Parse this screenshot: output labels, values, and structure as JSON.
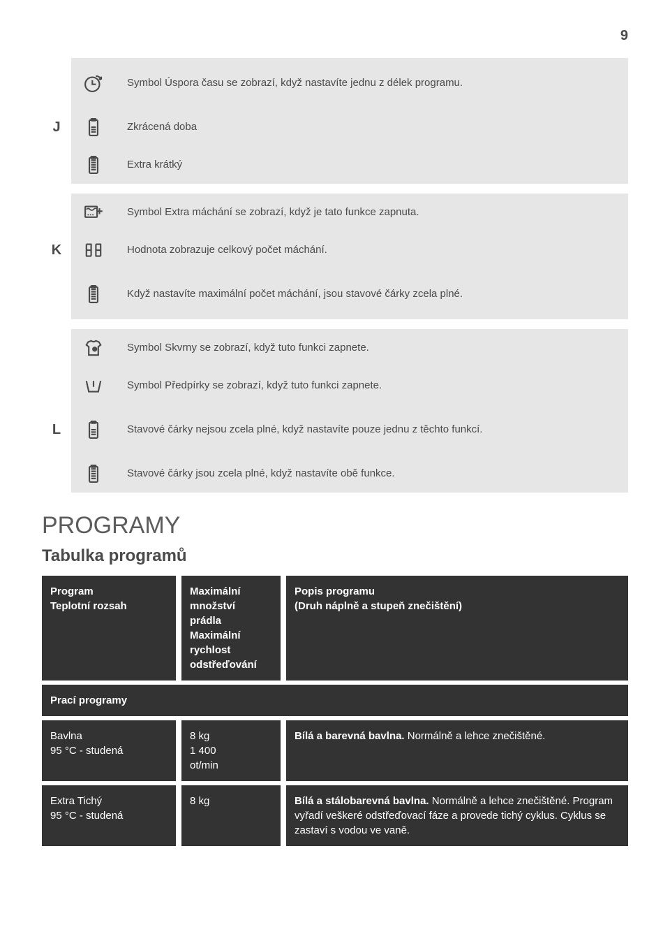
{
  "page_number": "9",
  "sections": {
    "J": {
      "letter": "J",
      "rows": [
        {
          "icon": "clock-arrow-icon",
          "text": "Symbol Úspora času se zobrazí, když nastavíte jednu z délek programu."
        },
        {
          "icon": "battery-half-icon",
          "text": "Zkrácená doba"
        },
        {
          "icon": "battery-full-icon",
          "text": "Extra krátký"
        }
      ]
    },
    "K": {
      "letter": "K",
      "rows": [
        {
          "icon": "rinse-plus-icon",
          "text": "Symbol Extra máchání se zobrazí, když je tato funkce zapnuta."
        },
        {
          "icon": "digits-icon",
          "text": "Hodnota zobrazuje celkový počet máchání."
        },
        {
          "icon": "battery-full-icon",
          "text": "Když nastavíte maximální počet máchání, jsou stavové čárky zcela plné."
        }
      ]
    },
    "L": {
      "letter": "L",
      "rows": [
        {
          "icon": "shirt-stain-icon",
          "text": "Symbol Skvrny se zobrazí, když tuto funkci zapnete."
        },
        {
          "icon": "basin-icon",
          "text": "Symbol Předpírky se zobrazí, když tuto funkci zapnete."
        },
        {
          "icon": "battery-half-icon",
          "text": "Stavové čárky nejsou zcela plné, když nastavíte pouze jednu z těchto funkcí."
        },
        {
          "icon": "battery-full-icon",
          "text": "Stavové čárky jsou zcela plné, když nastavíte obě funkce."
        }
      ]
    }
  },
  "heading_programy": "PROGRAMY",
  "heading_tabulka": "Tabulka programů",
  "table": {
    "header": {
      "col1": "Program\nTeplotní rozsah",
      "col2": "Maximální\nmnožství\nprádla\nMaximální\nrychlost\nodstřeďování",
      "col3": "Popis programu\n(Druh náplně a stupeň znečištění)"
    },
    "subheader": "Prací programy",
    "rows": [
      {
        "c1": "Bavlna\n95 °C - studená",
        "c2": "8 kg\n1 400\not/min",
        "c3_bold": "Bílá a barevná bavlna.",
        "c3_rest": " Normálně a lehce znečištěné."
      },
      {
        "c1": "Extra Tichý\n95 °C - studená",
        "c2": "8 kg",
        "c3_bold": "Bílá a stálobarevná bavlna.",
        "c3_rest": " Normálně a lehce znečištěné. Program vyřadí veškeré odstřeďovací fáze a provede tichý cyklus. Cyklus se zastaví s vodou ve vaně."
      }
    ]
  },
  "colors": {
    "gray_bg": "#e6e6e6",
    "dark_bg": "#333333",
    "text": "#4a4a4a"
  }
}
